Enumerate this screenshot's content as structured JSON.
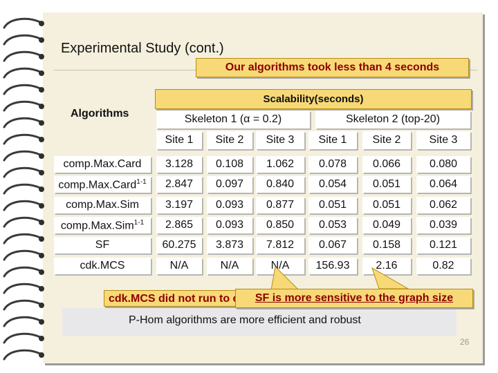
{
  "title": "Experimental Study (cont.)",
  "callout_top": "Our algorithms took less than 4 seconds",
  "scalability_label": "Scalability(seconds)",
  "algorithms_header": "Algorithms",
  "skeleton1": "Skeleton 1 (α = 0.2)",
  "skeleton2": "Skeleton 2 (top-20)",
  "sites": [
    "Site 1",
    "Site 2",
    "Site 3",
    "Site 1",
    "Site 2",
    "Site 3"
  ],
  "rows": [
    {
      "name": "comp.Max.Card",
      "sup": "",
      "values": [
        "3.128",
        "0.108",
        "1.062",
        "0.078",
        "0.066",
        "0.080"
      ]
    },
    {
      "name": "comp.Max.Card",
      "sup": "1-1",
      "values": [
        "2.847",
        "0.097",
        "0.840",
        "0.054",
        "0.051",
        "0.064"
      ]
    },
    {
      "name": "comp.Max.Sim",
      "sup": "",
      "values": [
        "3.197",
        "0.093",
        "0.877",
        "0.051",
        "0.051",
        "0.062"
      ]
    },
    {
      "name": "comp.Max.Sim",
      "sup": "1-1",
      "values": [
        "2.865",
        "0.093",
        "0.850",
        "0.053",
        "0.049",
        "0.039"
      ]
    },
    {
      "name": "SF",
      "sup": "",
      "values": [
        "60.275",
        "3.873",
        "7.812",
        "0.067",
        "0.158",
        "0.121"
      ]
    },
    {
      "name": "cdk.MCS",
      "sup": "",
      "values": [
        "N/A",
        "N/A",
        "N/A",
        "156.93",
        "2.16",
        "0.82"
      ]
    }
  ],
  "callout_cdk": "cdk.MCS did not run to completion",
  "callout_sf": "SF is more sensitive to the graph size",
  "footer_note": "P-Hom algorithms are more efficient and robust",
  "page_number": "26",
  "colors": {
    "callout_fill": "#f8d977",
    "callout_text": "#8b0000",
    "paper": "#f4f0dd"
  }
}
